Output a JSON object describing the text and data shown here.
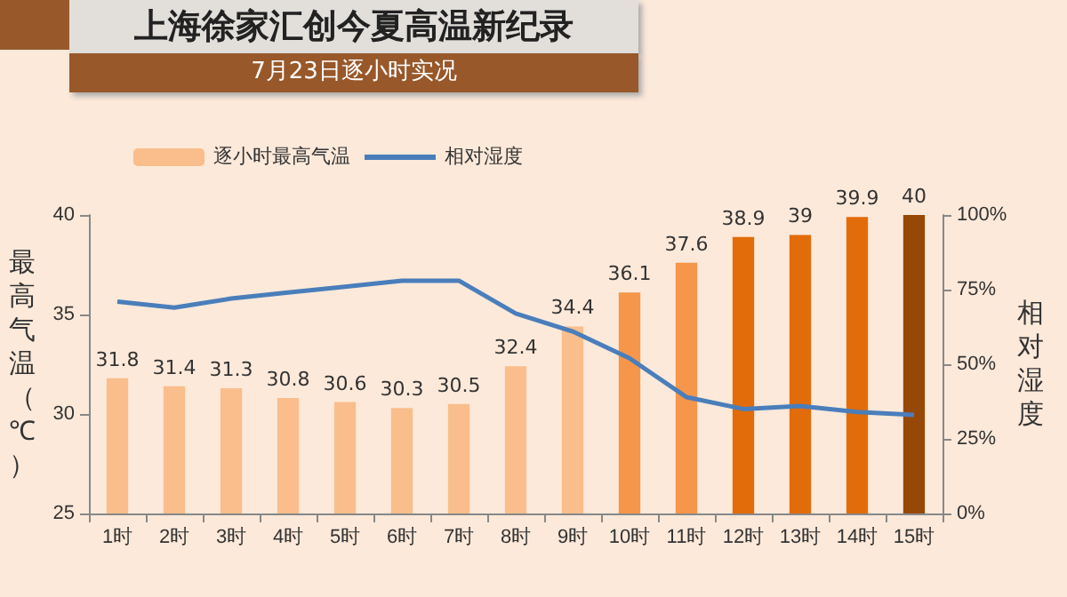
{
  "chart_data": {
    "type": "bar",
    "title": "上海徐家汇创今夏高温新纪录",
    "subtitle": "7月23日逐小时实况",
    "ylabel": "最高气温（℃）",
    "y2label": "相对湿度",
    "categories": [
      "1时",
      "2时",
      "3时",
      "4时",
      "5时",
      "6时",
      "7时",
      "8时",
      "9时",
      "10时",
      "11时",
      "12时",
      "13时",
      "14时",
      "15时"
    ],
    "series": [
      {
        "name": "逐小时最高气温",
        "value_labels": [
          "31.8",
          "31.4",
          "31.3",
          "30.8",
          "30.6",
          "30.3",
          "30.5",
          "32.4",
          "34.4",
          "36.1",
          "37.6",
          "38.9",
          "39",
          "39.9",
          "40"
        ],
        "color": "#f9be8c",
        "colors": [
          "#f9be8c",
          "#f9be8c",
          "#f9be8c",
          "#f9be8c",
          "#f9be8c",
          "#f9be8c",
          "#f9be8c",
          "#f9be8c",
          "#f9be8c",
          "#f5964a",
          "#f5964a",
          "#e36c0a",
          "#e36c0a",
          "#e36c0a",
          "#974806"
        ],
        "values": [
          31.8,
          31.4,
          31.3,
          30.8,
          30.6,
          30.3,
          30.5,
          32.4,
          34.4,
          36.1,
          37.6,
          38.9,
          39,
          39.9,
          40
        ]
      },
      {
        "name": "相对湿度",
        "type": "line",
        "axis": "y2",
        "color": "#4a7ebb",
        "values": [
          71,
          69,
          72,
          74,
          76,
          78,
          78,
          67,
          61,
          52,
          39,
          35,
          36,
          34,
          33
        ]
      }
    ],
    "ylim": [
      25,
      40
    ],
    "yticks": [
      25,
      30,
      35,
      40
    ],
    "y2lim": [
      0,
      100
    ],
    "y2ticks": [
      {
        "value": 0,
        "label": "0%"
      },
      {
        "value": 25,
        "label": "25%"
      },
      {
        "value": 50,
        "label": "50%"
      },
      {
        "value": 75,
        "label": "75%"
      },
      {
        "value": 100,
        "label": "100%"
      }
    ],
    "grid": false,
    "legend": "top left",
    "marker": "none"
  }
}
